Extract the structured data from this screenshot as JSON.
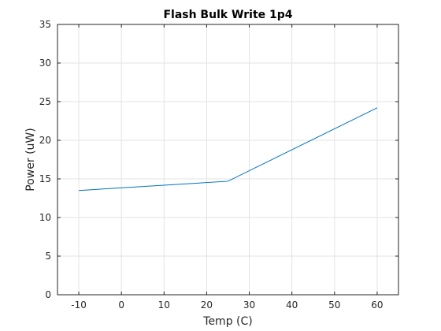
{
  "chart_data": {
    "type": "line",
    "title": "Flash Bulk Write 1p4",
    "xlabel": "Temp (C)",
    "ylabel": "Power (uW)",
    "xlim": [
      -15,
      65
    ],
    "ylim": [
      0,
      35
    ],
    "xticks": [
      -10,
      0,
      10,
      20,
      30,
      40,
      50,
      60
    ],
    "yticks": [
      0,
      5,
      10,
      15,
      20,
      25,
      30,
      35
    ],
    "grid": true,
    "series": [
      {
        "x": [
          -10,
          25,
          60
        ],
        "y": [
          13.5,
          14.7,
          24.2
        ],
        "color": "#0072BD"
      }
    ]
  }
}
